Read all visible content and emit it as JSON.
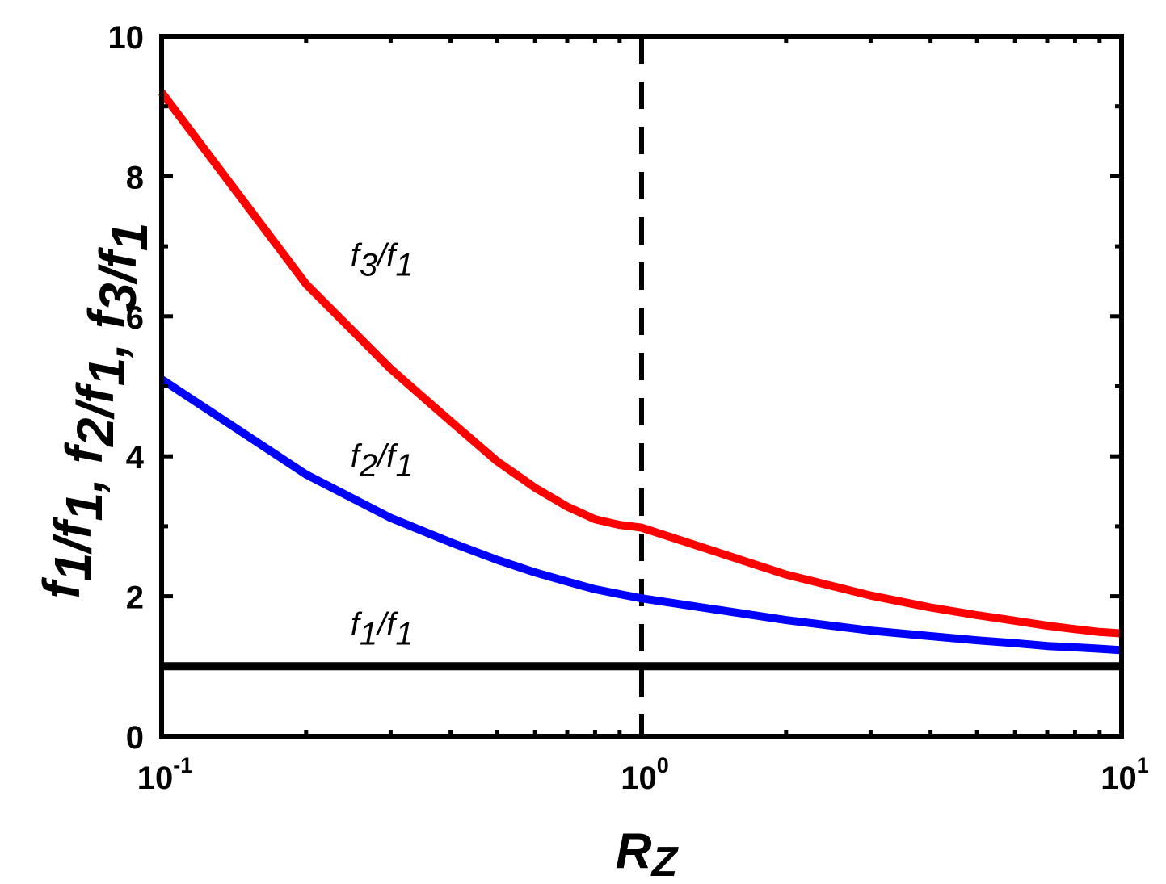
{
  "chart_data": {
    "type": "line",
    "xscale": "log",
    "xlim": [
      0.1,
      10
    ],
    "ylim": [
      0,
      10
    ],
    "grid": false,
    "legend": "none",
    "x_tick_labels": [
      {
        "value": 0.1,
        "base": "10",
        "exp": "-1"
      },
      {
        "value": 1,
        "base": "10",
        "exp": "0"
      },
      {
        "value": 10,
        "base": "10",
        "exp": "1"
      }
    ],
    "y_ticks": [
      0,
      2,
      4,
      6,
      8,
      10
    ],
    "xlabel": {
      "main": "R",
      "sub": "Z"
    },
    "ylabel": [
      {
        "t": "f",
        "s": "1"
      },
      {
        "t": "/f",
        "s": "1"
      },
      {
        "t": ", "
      },
      {
        "t": "f",
        "s": "2"
      },
      {
        "t": "/f",
        "s": "1"
      },
      {
        "t": ", "
      },
      {
        "t": "f",
        "s": "3"
      },
      {
        "t": "/f",
        "s": "1"
      }
    ],
    "vline": {
      "x": 1,
      "style": "dashed",
      "color": "#000000"
    },
    "series": [
      {
        "color": "#000000",
        "label": {
          "num": "1",
          "den": "1"
        },
        "x": [
          0.1,
          10
        ],
        "y": [
          1.0,
          1.0
        ]
      },
      {
        "color": "#0000ff",
        "label": {
          "num": "2",
          "den": "1"
        },
        "x": [
          0.1,
          0.2,
          0.3,
          0.4,
          0.5,
          0.6,
          0.7,
          0.8,
          0.9,
          1,
          2,
          3,
          4,
          5,
          6,
          7,
          8,
          9,
          10
        ],
        "y": [
          5.1,
          3.74,
          3.12,
          2.77,
          2.52,
          2.34,
          2.21,
          2.1,
          2.03,
          1.97,
          1.66,
          1.51,
          1.43,
          1.37,
          1.33,
          1.29,
          1.27,
          1.25,
          1.23
        ]
      },
      {
        "color": "#ff0000",
        "label": {
          "num": "3",
          "den": "1"
        },
        "x": [
          0.1,
          0.2,
          0.3,
          0.4,
          0.5,
          0.6,
          0.7,
          0.8,
          0.9,
          1,
          2,
          3,
          4,
          5,
          6,
          7,
          8,
          9,
          10
        ],
        "y": [
          9.2,
          6.46,
          5.25,
          4.5,
          3.93,
          3.55,
          3.28,
          3.1,
          3.02,
          2.98,
          2.31,
          2.01,
          1.84,
          1.73,
          1.65,
          1.58,
          1.53,
          1.49,
          1.47
        ]
      }
    ]
  }
}
